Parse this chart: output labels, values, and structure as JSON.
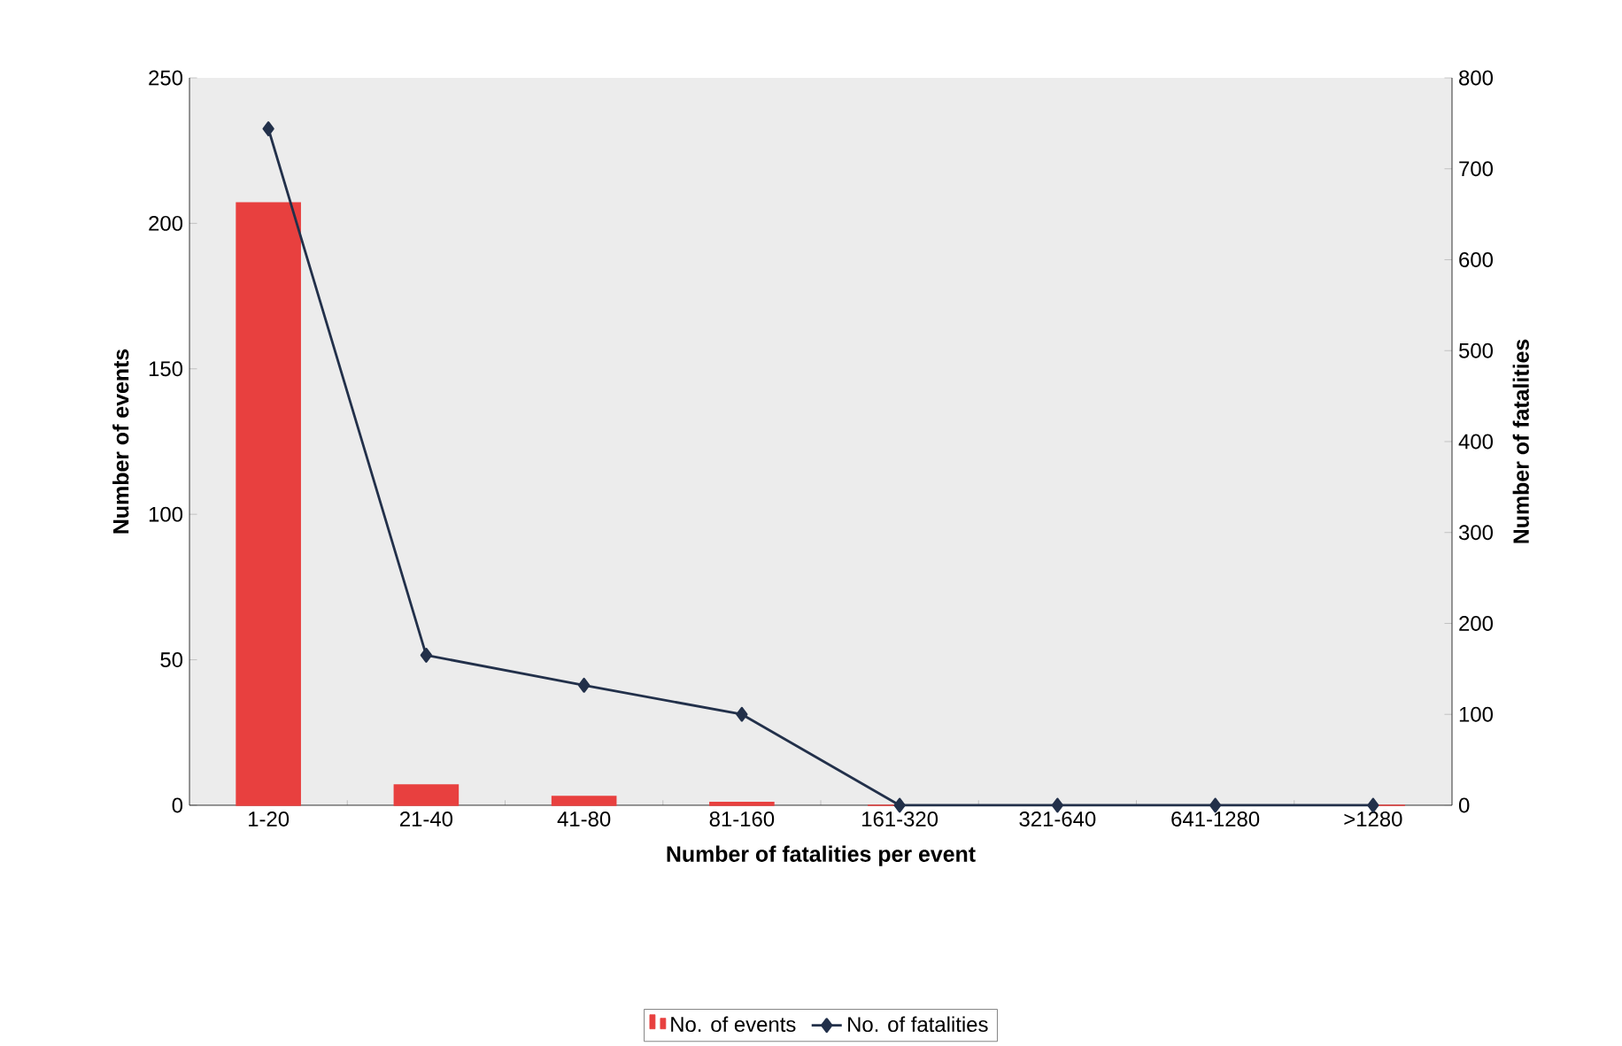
{
  "chart_data": {
    "type": "bar",
    "xlabel": "Number of fatalities per event",
    "ylabel": "Number of events",
    "y2label": "Number of fatalities",
    "categories": [
      "1-20",
      "21-40",
      "41-80",
      "81-160",
      "161-320",
      "321-640",
      "641-1280",
      ">1280"
    ],
    "series": [
      {
        "name": "No. of events",
        "color": "#e8403f",
        "values": [
          207,
          7,
          3,
          1,
          0,
          0,
          0,
          0
        ]
      },
      {
        "name": "No. of fatalities",
        "type": "line",
        "axis": "y2",
        "color": "#22304a",
        "marker": "diamond",
        "values": [
          744,
          165,
          132,
          100,
          0,
          0,
          0,
          0
        ]
      }
    ],
    "ylim": [
      0,
      250
    ],
    "yticks": [
      0,
      50,
      100,
      150,
      200,
      250
    ],
    "y2lim": [
      0,
      800
    ],
    "y2ticks": [
      0,
      100,
      200,
      300,
      400,
      500,
      600,
      700,
      800
    ],
    "legend": "bottom"
  }
}
